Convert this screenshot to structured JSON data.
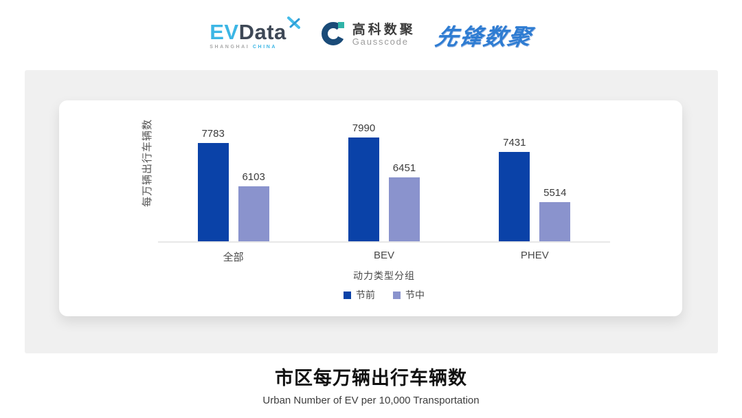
{
  "header": {
    "evdata": {
      "text_ev": "EV",
      "text_data": "Data",
      "mark": "x-star-icon",
      "sub_left": "SHANGHAI",
      "sub_right": "CHINA",
      "ev_color": "#3CB6E5",
      "data_color": "#3E4856"
    },
    "gausscode": {
      "cn": "高科数聚",
      "en": "Gausscode",
      "mark": "gausscode-ring-icon",
      "ring_color": "#1A4B78",
      "accent_color": "#2FB3A8"
    },
    "pioneer": {
      "text": "先锋数聚",
      "color": "#2E7CD2"
    }
  },
  "chart_data": {
    "type": "bar",
    "title": "市区每万辆出行车辆数",
    "subtitle": "Urban Number of EV per 10,000 Transportation",
    "xlabel": "动力类型分组",
    "ylabel": "每万辆出行车辆数",
    "categories": [
      "全部",
      "BEV",
      "PHEV"
    ],
    "series": [
      {
        "name": "节前",
        "color": "#0A42A8",
        "values": [
          7783,
          7990,
          7431
        ]
      },
      {
        "name": "节中",
        "color": "#8A93CD",
        "values": [
          6103,
          6451,
          5514
        ]
      }
    ],
    "ylim": [
      4000,
      8880
    ],
    "grid": false,
    "legend_position": "bottom",
    "axis_line_color": "#E7E7E7"
  }
}
